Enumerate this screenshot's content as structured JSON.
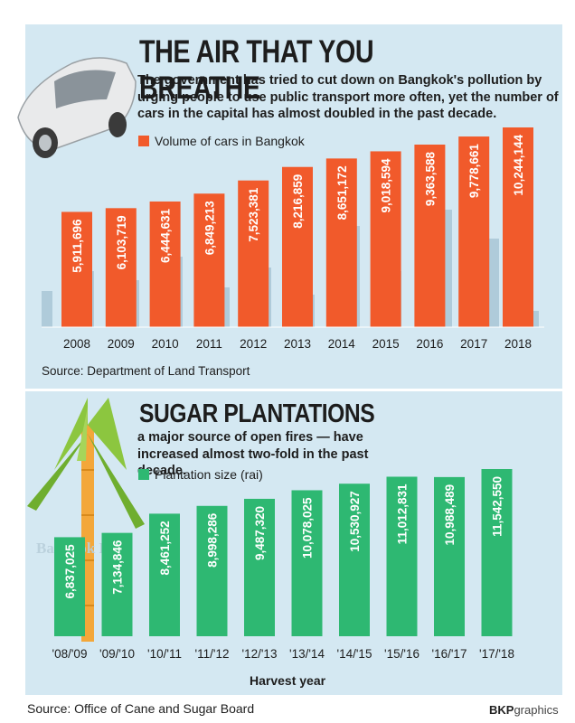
{
  "header": {
    "title": "THE AIR THAT YOU BREATHE",
    "subtitle": "The government has tried to cut down on Bangkok's pollution by urging people to use public transport more often, yet the number of cars in the capital has almost doubled in the past decade."
  },
  "section2": {
    "title": "SUGAR PLANTATIONS",
    "subtitle": "a major source of open fires — have increased almost two-fold in the past decade."
  },
  "colors": {
    "panel": "#d4e8f2",
    "cars": "#f15a2b",
    "sugar": "#2eb872"
  },
  "footer": {
    "source": "Source: Office of Cane and Sugar Board",
    "brand_bold": "BKP",
    "brand_rest": "graphics"
  },
  "watermark": "Bangkok Post",
  "chart_data": [
    {
      "type": "bar",
      "title": "THE AIR THAT YOU BREATHE",
      "legend": "Volume of cars in Bangkok",
      "categories": [
        "2008",
        "2009",
        "2010",
        "2011",
        "2012",
        "2013",
        "2014",
        "2015",
        "2016",
        "2017",
        "2018"
      ],
      "values": [
        5911696,
        6103719,
        6444631,
        6849213,
        7523381,
        8216859,
        8651172,
        9018594,
        9363588,
        9778661,
        10244144
      ],
      "labels": [
        "5,911,696",
        "6,103,719",
        "6,444,631",
        "6,849,213",
        "7,523,381",
        "8,216,859",
        "8,651,172",
        "9,018,594",
        "9,363,588",
        "9,778,661",
        "10,244,144"
      ],
      "source": "Source: Department of Land Transport",
      "xlabel": "",
      "ylabel": "",
      "ylim": [
        0,
        11000000
      ]
    },
    {
      "type": "bar",
      "title": "SUGAR PLANTATIONS",
      "legend": "Plantation size (rai)",
      "categories": [
        "'08/'09",
        "'09/'10",
        "'10/'11",
        "'11/'12",
        "'12/'13",
        "'13/'14",
        "'14/'15",
        "'15/'16",
        "'16/'17",
        "'17/'18"
      ],
      "values": [
        6837025,
        7134846,
        8461252,
        8998286,
        9487320,
        10078025,
        10530927,
        11012831,
        10988489,
        11542550
      ],
      "labels": [
        "6,837,025",
        "7,134,846",
        "8,461,252",
        "8,998,286",
        "9,487,320",
        "10,078,025",
        "10,530,927",
        "11,012,831",
        "10,988,489",
        "11,542,550"
      ],
      "xlabel": "Harvest year",
      "ylabel": "",
      "ylim": [
        0,
        12400000
      ]
    }
  ]
}
